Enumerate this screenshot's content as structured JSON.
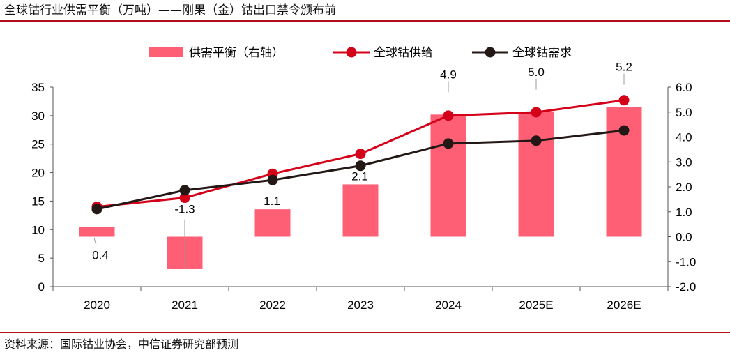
{
  "title": "全球钴行业供需平衡（万吨）——刚果（金）钴出口禁令颁布前",
  "source": "资料来源：国际钴业协会，中信证券研究部预测",
  "colors": {
    "balance": "#ff5f75",
    "supply": "#d4001a",
    "demand": "#231815",
    "rule": "#b0101e"
  },
  "chart_data": {
    "type": "bar+line",
    "categories": [
      "2020",
      "2021",
      "2022",
      "2023",
      "2024",
      "2025E",
      "2026E"
    ],
    "left_axis": {
      "ylim": [
        0,
        35
      ],
      "ticks": [
        "0",
        "5",
        "10",
        "15",
        "20",
        "25",
        "30",
        "35"
      ]
    },
    "right_axis": {
      "ylim": [
        -2,
        6
      ],
      "ticks": [
        "-2.0",
        "-1.0",
        "0.0",
        "1.0",
        "2.0",
        "3.0",
        "4.0",
        "5.0",
        "6.0"
      ]
    },
    "series": [
      {
        "name": "供需平衡（右轴）",
        "type": "bar",
        "axis": "right",
        "values": [
          0.4,
          -1.3,
          1.1,
          2.1,
          4.9,
          5.0,
          5.2
        ],
        "labels": [
          "0.4",
          "-1.3",
          "1.1",
          "2.1",
          "4.9",
          "5.0",
          "5.2"
        ]
      },
      {
        "name": "全球钴供给",
        "type": "line",
        "axis": "left",
        "values": [
          14.0,
          15.6,
          19.8,
          23.3,
          30.0,
          30.6,
          32.7
        ]
      },
      {
        "name": "全球钴需求",
        "type": "line",
        "axis": "left",
        "values": [
          13.6,
          16.9,
          18.7,
          21.2,
          25.1,
          25.6,
          27.4
        ]
      }
    ]
  }
}
